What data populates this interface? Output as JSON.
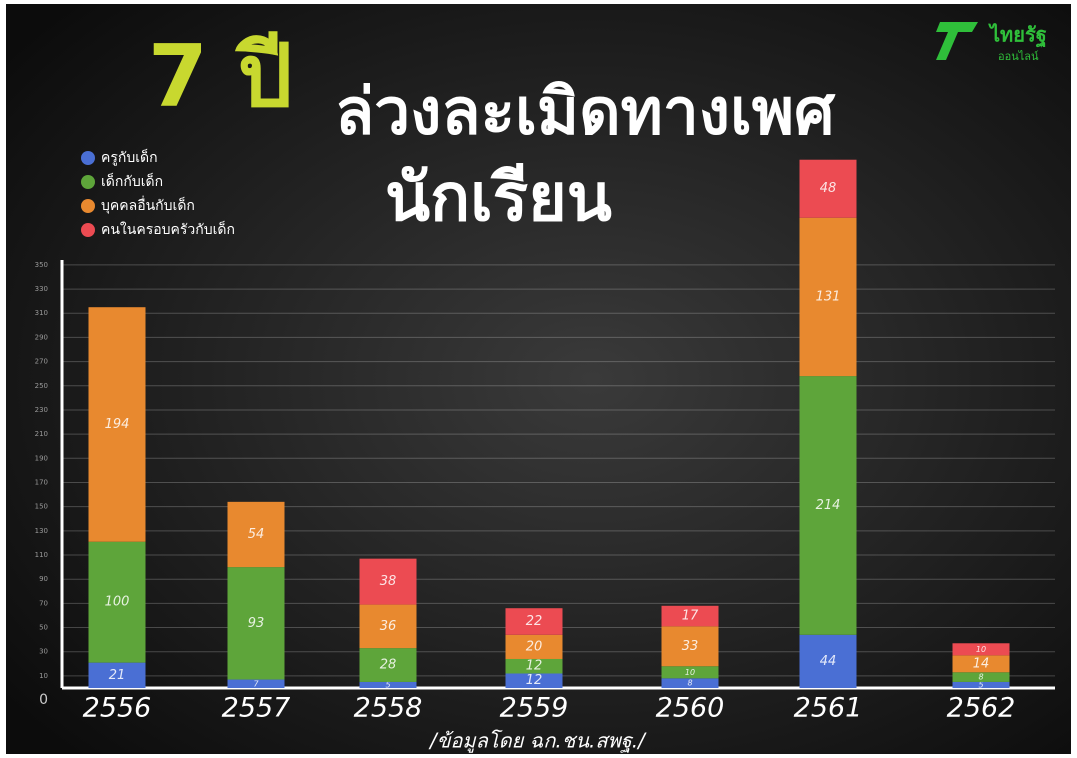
{
  "logo": {
    "name": "ไทยรัฐ",
    "tagline": "ออนไลน์"
  },
  "chart_data": {
    "type": "stacked-bar",
    "title": [
      "7 ปี",
      "ล่วงละเมิดทางเพศ",
      "นักเรียน"
    ],
    "source": "/ข้อมูลโดย  ฉก.ชน.สพฐ./",
    "categories": [
      "2556",
      "2557",
      "2558",
      "2559",
      "2560",
      "2561",
      "2562"
    ],
    "series": [
      {
        "name": "ครูกับเด็ก",
        "color": "#4a6fd4",
        "values": [
          21,
          7,
          5,
          12,
          8,
          44,
          5
        ]
      },
      {
        "name": "เด็กกับเด็ก",
        "color": "#5ea53a",
        "values": [
          100,
          93,
          28,
          12,
          10,
          214,
          8
        ]
      },
      {
        "name": "บุคคลอื่นกับเด็ก",
        "color": "#e8892f",
        "values": [
          194,
          54,
          36,
          20,
          33,
          131,
          14
        ]
      },
      {
        "name": "คนในครอบครัวกับเด็ก",
        "color": "#ec4b52",
        "values": [
          null,
          null,
          38,
          22,
          17,
          48,
          10
        ]
      }
    ],
    "ylim": [
      0,
      450
    ],
    "yticks": [
      0,
      10,
      30,
      50,
      70,
      90,
      110,
      130,
      150,
      170,
      190,
      210,
      230,
      250,
      270,
      290,
      310,
      330,
      350
    ],
    "grid": true,
    "legend": "top-left"
  }
}
